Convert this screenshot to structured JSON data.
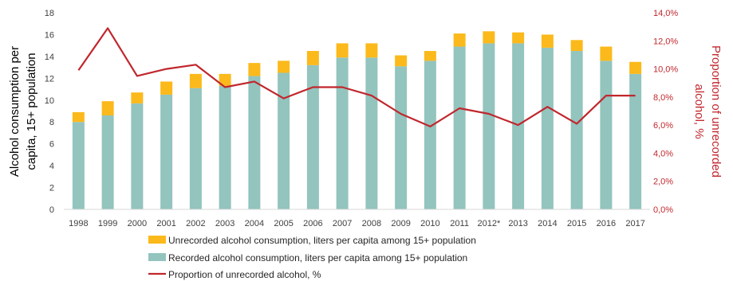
{
  "chart_data": {
    "type": "bar+line",
    "categories": [
      "1998",
      "1999",
      "2000",
      "2001",
      "2002",
      "2003",
      "2004",
      "2005",
      "2006",
      "2007",
      "2008",
      "2009",
      "2010",
      "2011",
      "2012*",
      "2013",
      "2014",
      "2015",
      "2016",
      "2017"
    ],
    "series": [
      {
        "name": "Recorded alcohol consumption, liters per capita among 15+ population",
        "type": "stacked-bar",
        "axis": "left",
        "color": "#93c4be",
        "values": [
          8.0,
          8.6,
          9.7,
          10.5,
          11.1,
          11.3,
          12.2,
          12.5,
          13.2,
          13.9,
          13.9,
          13.1,
          13.6,
          14.9,
          15.2,
          15.2,
          14.8,
          14.5,
          13.6,
          12.4
        ]
      },
      {
        "name": "Unrecorded alcohol consumption, liters per capita among 15+ population",
        "type": "stacked-bar",
        "axis": "left",
        "color": "#fbb91b",
        "values": [
          0.9,
          1.3,
          1.0,
          1.2,
          1.3,
          1.1,
          1.2,
          1.1,
          1.3,
          1.3,
          1.3,
          1.0,
          0.9,
          1.2,
          1.1,
          1.0,
          1.2,
          1.0,
          1.3,
          1.1
        ]
      },
      {
        "name": "Proportion of unrecorded alcohol, %",
        "type": "line",
        "axis": "right",
        "color": "#c0272d",
        "values": [
          9.9,
          12.9,
          9.5,
          10.0,
          10.3,
          8.7,
          9.1,
          7.9,
          8.7,
          8.7,
          8.1,
          6.8,
          5.9,
          7.2,
          6.8,
          6.0,
          7.3,
          6.1,
          8.1,
          8.1
        ]
      }
    ],
    "y_left": {
      "title_line1": "Alcohol consumption per",
      "title_line2": "capita, 15+ population",
      "ylim": [
        0,
        18
      ],
      "ticks": [
        "0",
        "2",
        "4",
        "6",
        "8",
        "10",
        "12",
        "14",
        "16",
        "18"
      ]
    },
    "y_right": {
      "title_line1": "Proportion of unrecorded",
      "title_line2": "alcohol, %",
      "ylim": [
        0,
        14
      ],
      "ticks": [
        "0,0%",
        "2,0%",
        "4,0%",
        "6,0%",
        "8,0%",
        "10,0%",
        "12,0%",
        "14,0%"
      ]
    },
    "legend": {
      "placement": "bottom",
      "items": [
        "Unrecorded alcohol consumption, liters per capita among 15+ population",
        "Recorded alcohol consumption, liters per capita among 15+ population",
        "Proportion of unrecorded alcohol, %"
      ]
    },
    "grid": false
  }
}
